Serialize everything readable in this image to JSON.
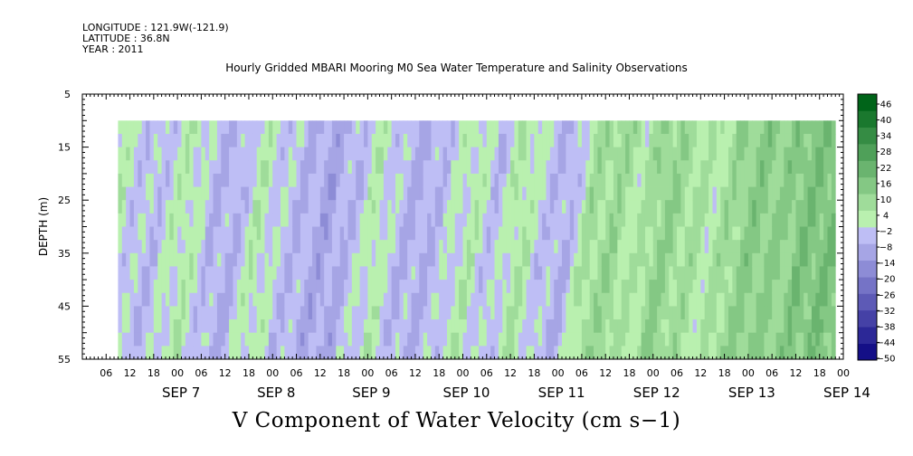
{
  "header": {
    "longitude": "LONGITUDE : 121.9W(-121.9)",
    "latitude": "LATITUDE : 36.8N",
    "year": "YEAR : 2011"
  },
  "chart_data": {
    "type": "heatmap",
    "title": "Hourly Gridded MBARI Mooring M0 Sea Water Temperature and Salinity Observations",
    "xlabel": "V Component of Water Velocity (cm s−1)",
    "ylabel": "DEPTH (m)",
    "y_range": [
      5,
      55
    ],
    "y_inverted": true,
    "y_ticks": [
      5,
      15,
      25,
      35,
      45,
      55
    ],
    "data_depth_range": [
      10,
      55
    ],
    "x_range_hours": [
      0,
      192
    ],
    "x_start": "2011-09-06 00:00",
    "x_hour_ticks": [
      "06",
      "12",
      "18",
      "00",
      "06",
      "12",
      "18",
      "00",
      "06",
      "12",
      "18",
      "00",
      "06",
      "12",
      "18",
      "00",
      "06",
      "12",
      "18",
      "00",
      "06",
      "12",
      "18",
      "00",
      "06",
      "12",
      "18",
      "00",
      "06",
      "12",
      "18",
      "00"
    ],
    "x_dates": [
      "SEP  7",
      "SEP  8",
      "SEP  9",
      "SEP 10",
      "SEP 11",
      "SEP 12",
      "SEP 13",
      "SEP 14"
    ],
    "data_time_range_hours": [
      9,
      190
    ],
    "colorbar": {
      "levels": [
        -50,
        -44,
        -38,
        -32,
        -26,
        -20,
        -14,
        -8,
        -2,
        4,
        10,
        16,
        22,
        28,
        34,
        40,
        46
      ],
      "tick_labels": [
        "46",
        "40",
        "34",
        "28",
        "22",
        "16",
        "10",
        "4",
        "−2",
        "−8",
        "−14",
        "−20",
        "−26",
        "−32",
        "−38",
        "−44",
        "−50"
      ],
      "negative_color": "#4040ff",
      "positive_color": "#00cc33"
    },
    "approx_v_profile_by_hour": [
      [
        9,
        4
      ],
      [
        14,
        -4
      ],
      [
        20,
        -6
      ],
      [
        28,
        3
      ],
      [
        34,
        -6
      ],
      [
        40,
        -8
      ],
      [
        46,
        2
      ],
      [
        52,
        -4
      ],
      [
        58,
        -8
      ],
      [
        64,
        -10
      ],
      [
        70,
        -6
      ],
      [
        76,
        2
      ],
      [
        82,
        -6
      ],
      [
        88,
        -8
      ],
      [
        94,
        -4
      ],
      [
        100,
        2
      ],
      [
        106,
        -6
      ],
      [
        112,
        4
      ],
      [
        118,
        -4
      ],
      [
        124,
        -8
      ],
      [
        130,
        6
      ],
      [
        136,
        8
      ],
      [
        142,
        2
      ],
      [
        148,
        10
      ],
      [
        154,
        6
      ],
      [
        160,
        2
      ],
      [
        166,
        8
      ],
      [
        172,
        12
      ],
      [
        178,
        10
      ],
      [
        184,
        14
      ],
      [
        190,
        14
      ]
    ]
  }
}
